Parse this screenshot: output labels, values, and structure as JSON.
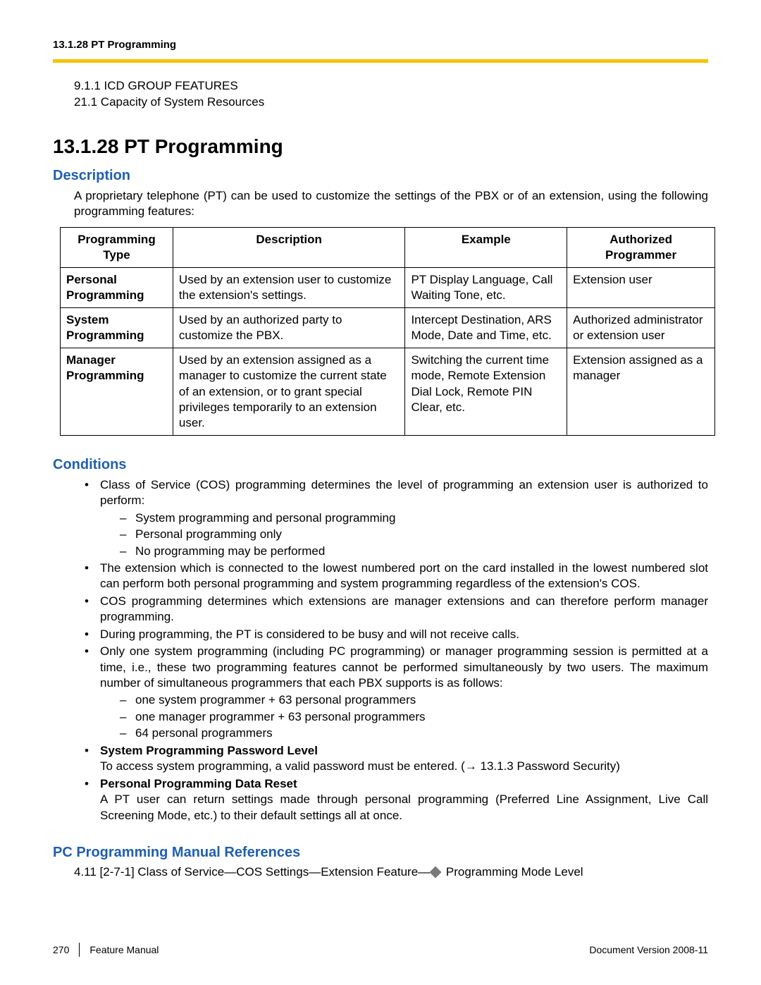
{
  "header": {
    "running": "13.1.28 PT Programming"
  },
  "accent_color": "#f2c500",
  "prelist": [
    "9.1.1  ICD GROUP FEATURES",
    "21.1  Capacity of System Resources"
  ],
  "title": "13.1.28  PT Programming",
  "description": {
    "heading": "Description",
    "paragraph": "A proprietary telephone (PT) can be used to customize the settings of the PBX or of an extension, using the following programming features:"
  },
  "table": {
    "headers": {
      "c1": "Programming Type",
      "c2": "Description",
      "c3": "Example",
      "c4": "Authorized Programmer"
    },
    "rows": [
      {
        "type": "Personal Programming",
        "desc": "Used by an extension user to customize the extension's settings.",
        "example": "PT Display Language, Call Waiting Tone, etc.",
        "auth": "Extension user"
      },
      {
        "type": "System Programming",
        "desc": "Used by an authorized party to customize the PBX.",
        "example": "Intercept Destination, ARS Mode, Date and Time, etc.",
        "auth": "Authorized administrator or extension user"
      },
      {
        "type": "Manager Programming",
        "desc": "Used by an extension assigned as a manager to customize the current state of an extension, or to grant special privileges temporarily to an extension user.",
        "example": "Switching the current time mode, Remote Extension Dial Lock, Remote PIN Clear, etc.",
        "auth": "Extension assigned as a manager"
      }
    ]
  },
  "conditions": {
    "heading": "Conditions",
    "items": {
      "cos_intro": "Class of Service (COS) programming determines the level of programming an extension user is authorized to perform:",
      "cos_a": "System programming and personal programming",
      "cos_b": "Personal programming only",
      "cos_c": "No programming may be performed",
      "lowest_port": "The extension which is connected to the lowest numbered port on the card installed in the lowest numbered slot can perform both personal programming and system programming regardless of the extension's COS.",
      "manager_ext": "COS programming determines which extensions are manager extensions and can therefore perform manager programming.",
      "busy": "During programming, the PT is considered to be busy and will not receive calls.",
      "one_session": "Only one system programming (including PC programming) or manager programming session is permitted at a time, i.e., these two programming features cannot be performed simultaneously by two users. The maximum number of simultaneous programmers that each PBX supports is as follows:",
      "sess_a": "one system programmer + 63 personal programmers",
      "sess_b": "one manager programmer + 63 personal programmers",
      "sess_c": "64 personal programmers",
      "syspw_title": "System Programming Password Level",
      "syspw_body": "To access system programming, a valid password must be entered. (→ 13.1.3  Password Security)",
      "reset_title": "Personal Programming Data Reset",
      "reset_body": "A PT user can return settings made through personal programming (Preferred Line Assignment, Live Call Screening Mode, etc.) to their default settings all at once."
    }
  },
  "pcref": {
    "heading": "PC Programming Manual References",
    "line_pre": "4.11  [2-7-1] Class of Service—COS Settings—Extension Feature—",
    "line_post": " Programming Mode Level"
  },
  "footer": {
    "page": "270",
    "manual": "Feature Manual",
    "docver": "Document Version  2008-11"
  }
}
